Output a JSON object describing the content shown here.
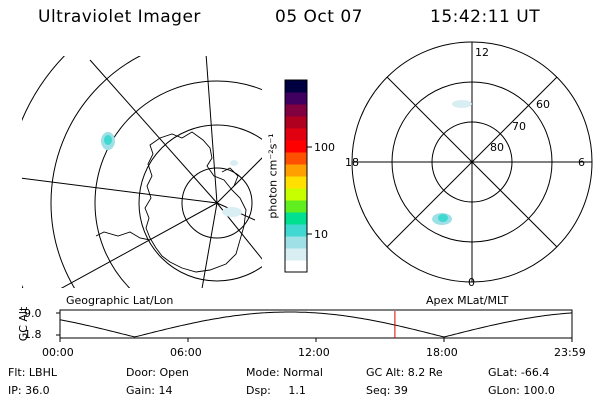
{
  "header": {
    "title": "Ultraviolet Imager",
    "date": "05 Oct 07",
    "time": "15:42:11 UT"
  },
  "colorbar": {
    "unit_label": "photon cm⁻²s⁻¹",
    "ticks": [
      "100",
      "10"
    ],
    "colors": [
      "#ffffff",
      "#d8eef2",
      "#9fe0e6",
      "#40d8d0",
      "#00e090",
      "#60ee20",
      "#c8ff00",
      "#ffe000",
      "#ffa000",
      "#ff5000",
      "#ff0000",
      "#e00010",
      "#b00020",
      "#800040",
      "#400060",
      "#000040"
    ]
  },
  "polar_labels": {
    "top": "12",
    "bottom": "0",
    "left": "18",
    "right": "6",
    "rings": [
      "60",
      "70",
      "80"
    ]
  },
  "map_labels": {
    "left_caption": "Geographic Lat/Lon",
    "right_caption": "Apex MLat/MLT"
  },
  "altitude_plot": {
    "ylabel": "GC Alt",
    "y_ticks": [
      "9.0",
      "1.8"
    ],
    "x_ticks": [
      "00:00",
      "06:00",
      "12:00",
      "18:00",
      "23:59"
    ],
    "current_marker_hour": 15.7
  },
  "info": {
    "row1": {
      "flt": "Flt: LBHL",
      "door": "Door: Open",
      "mode": "Mode: Normal",
      "gcalt": "GC Alt: 8.2 Re",
      "glat": "GLat: -66.4"
    },
    "row2": {
      "ip": "IP: 36.0",
      "gain": "Gain: 14",
      "dsp": "Dsp:     1.1",
      "seq": "Seq: 39",
      "glon": "GLon: 100.0"
    }
  }
}
